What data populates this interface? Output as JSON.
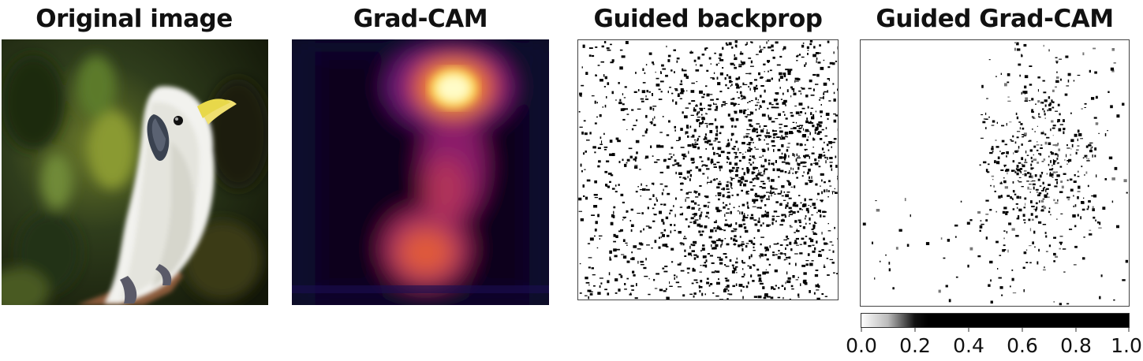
{
  "panels": [
    {
      "title": "Original image",
      "icon": "cockatoo-photo"
    },
    {
      "title": "Grad-CAM",
      "icon": "heatmap-inferno"
    },
    {
      "title": "Guided backprop",
      "icon": "saliency-map"
    },
    {
      "title": "Guided Grad-CAM",
      "icon": "saliency-map-masked"
    }
  ],
  "colorbar": {
    "ticks": [
      "0.0",
      "0.2",
      "0.4",
      "0.6",
      "0.8",
      "1.0"
    ],
    "colormap": "gray_r"
  }
}
